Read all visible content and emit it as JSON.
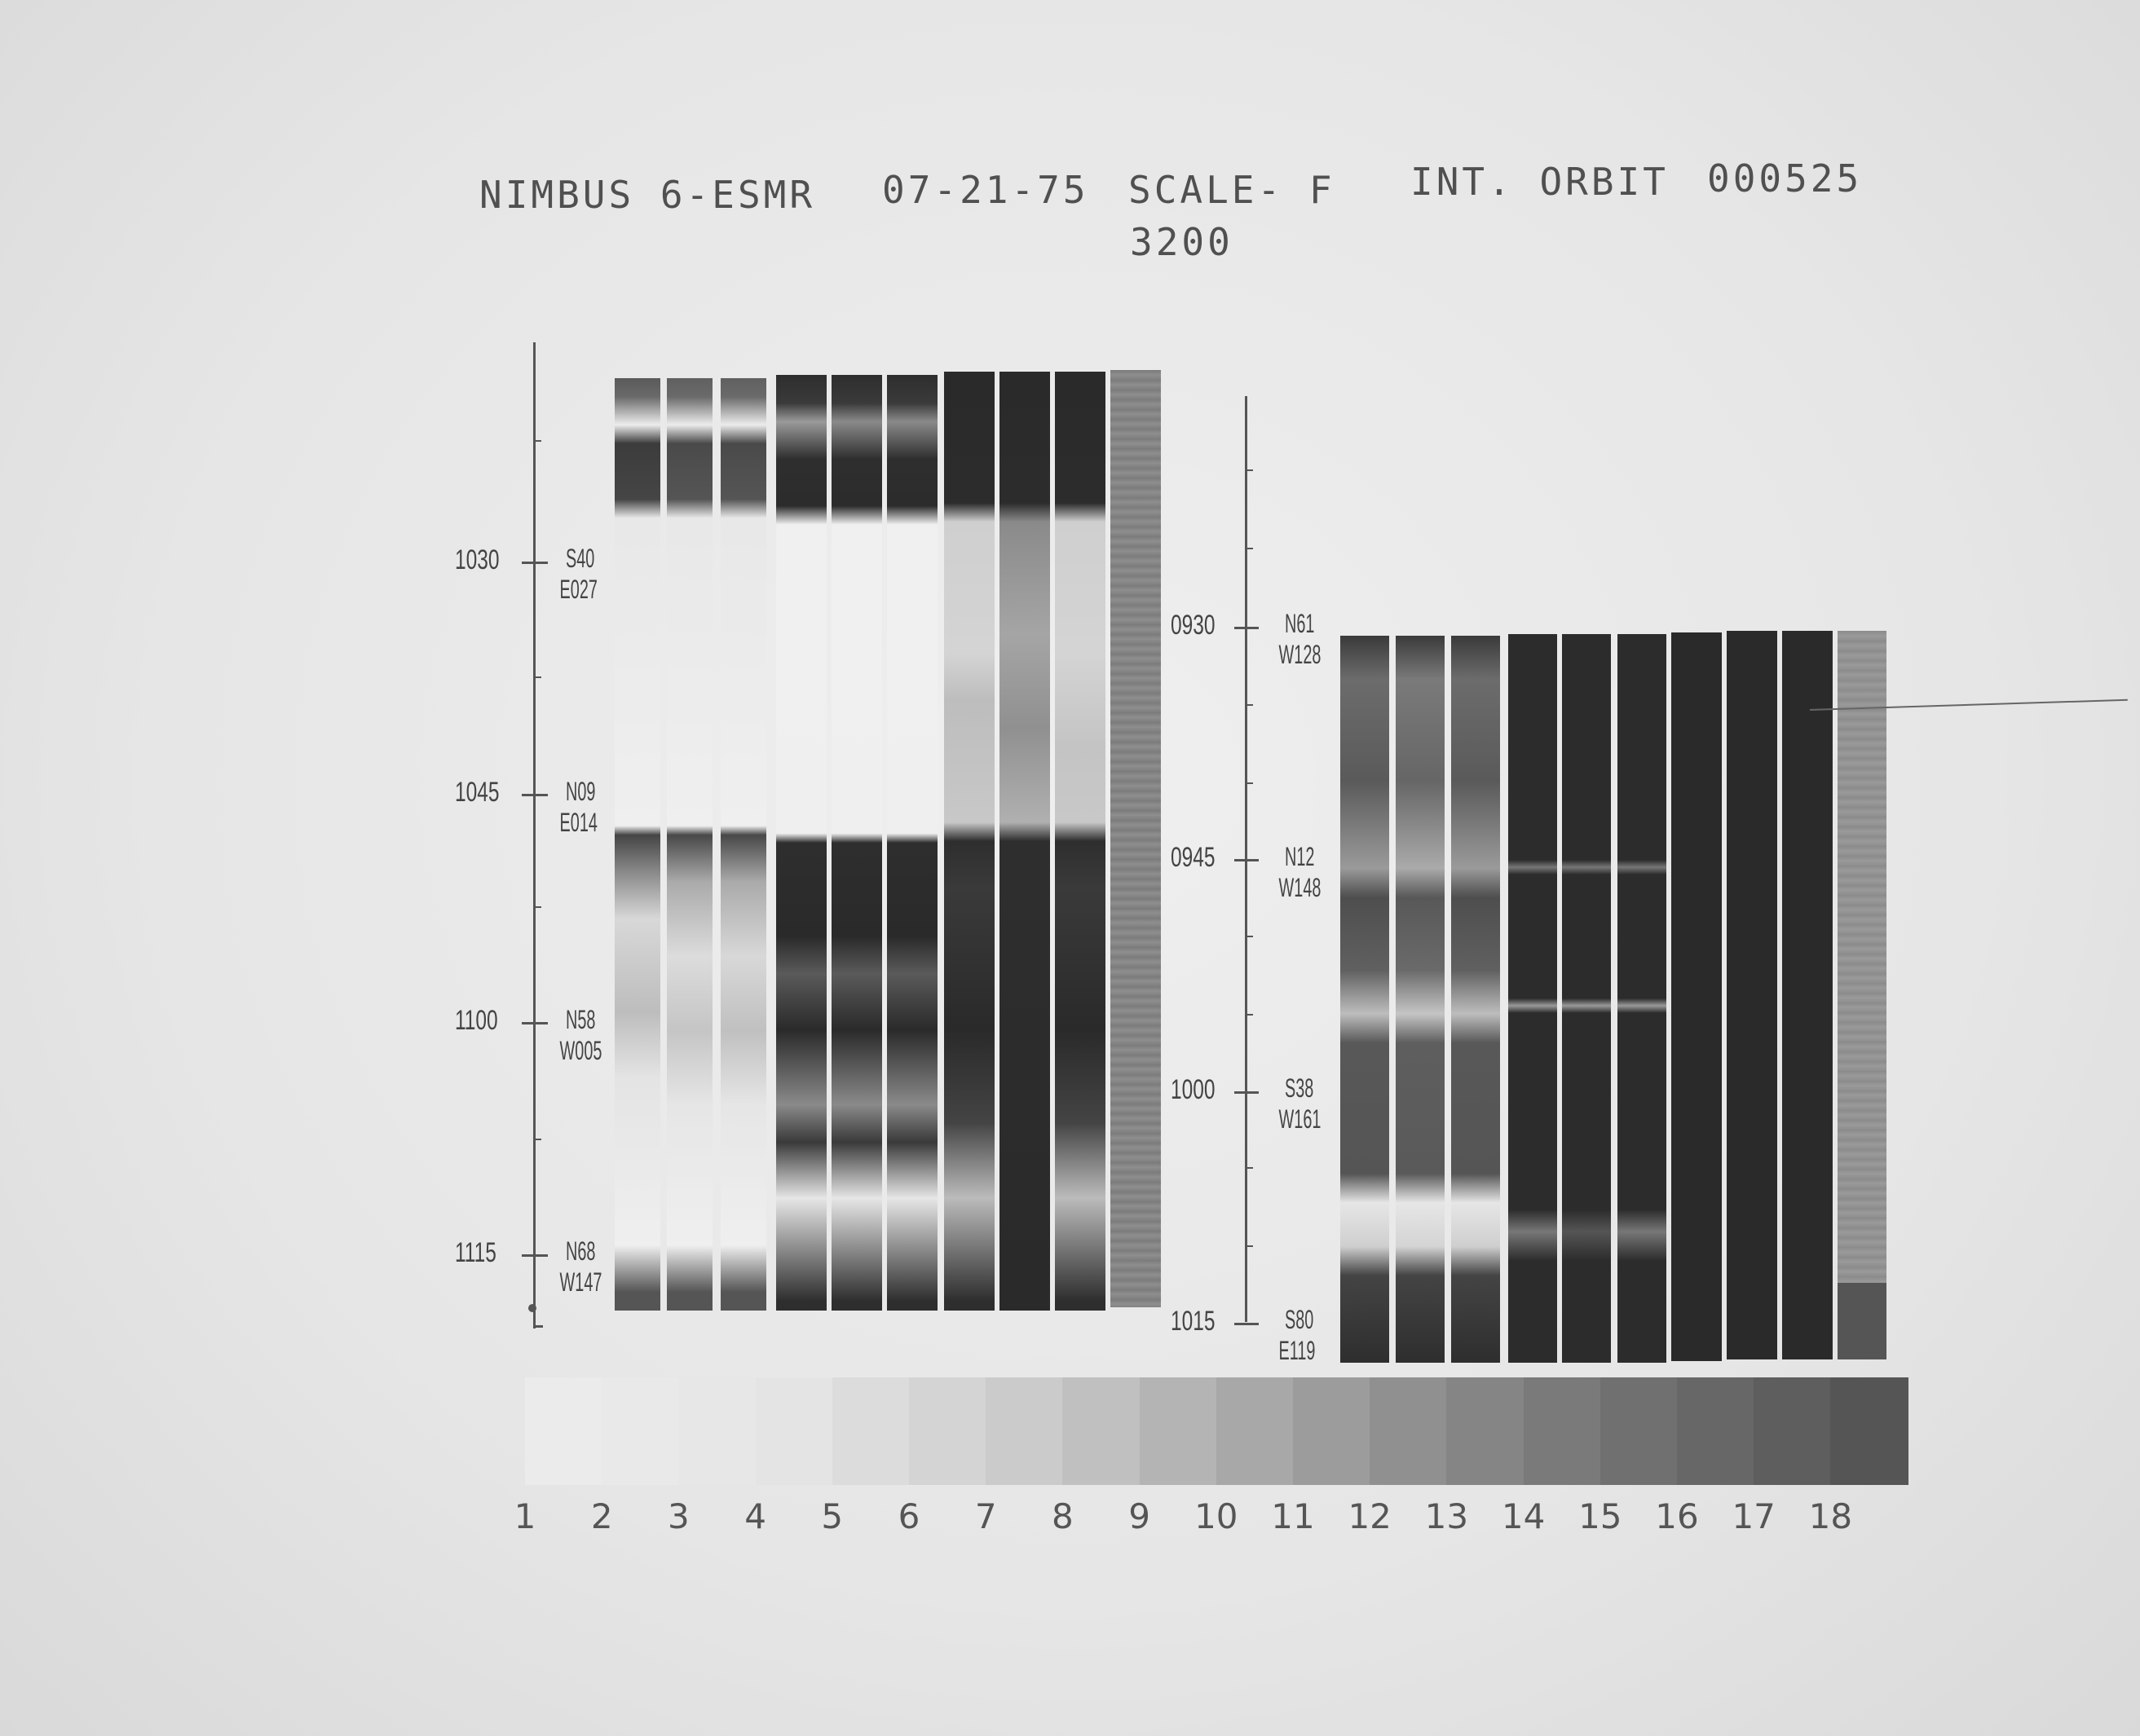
{
  "header": {
    "satellite": "NIMBUS 6-ESMR",
    "date": "07-21-75",
    "scale": "SCALE- F",
    "orbit_label": "INT. ORBIT",
    "orbit_number": "000525",
    "scale_value": "3200"
  },
  "left_panel": {
    "ticks": [
      {
        "time": "1030",
        "lat": "S40",
        "lon": "E027"
      },
      {
        "time": "1045",
        "lat": "N09",
        "lon": "E014"
      },
      {
        "time": "1100",
        "lat": "N58",
        "lon": "W005"
      },
      {
        "time": "1115",
        "lat": "N68",
        "lon": "W147"
      }
    ]
  },
  "right_panel": {
    "ticks": [
      {
        "time": "0930",
        "lat": "N61",
        "lon": "W128"
      },
      {
        "time": "0945",
        "lat": "N12",
        "lon": "W148"
      },
      {
        "time": "1000",
        "lat": "S38",
        "lon": "W161"
      },
      {
        "time": "1015",
        "lat": "S80",
        "lon": "E119"
      }
    ]
  },
  "gray_scale": {
    "labels": [
      "1",
      "2",
      "3",
      "4",
      "5",
      "6",
      "7",
      "8",
      "9",
      "10",
      "11",
      "12",
      "13",
      "14",
      "15",
      "16",
      "17",
      "18"
    ],
    "colors": [
      "#ebebeb",
      "#e9e9e9",
      "#e7e7e7",
      "#e4e4e4",
      "#dcdcdc",
      "#d4d4d4",
      "#cbcbcb",
      "#c0c0c0",
      "#b4b4b4",
      "#a8a8a8",
      "#9c9c9c",
      "#909090",
      "#858585",
      "#7a7a7a",
      "#707070",
      "#676767",
      "#5e5e5e",
      "#555555"
    ]
  }
}
